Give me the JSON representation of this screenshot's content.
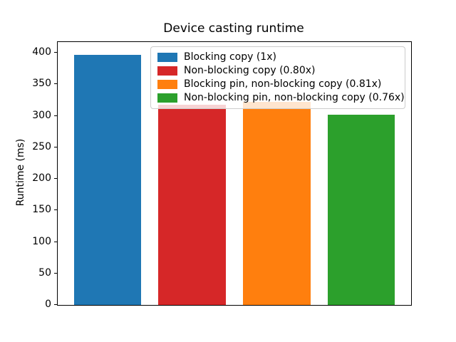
{
  "figure": {
    "background": "#ffffff",
    "axes_color": "#000000",
    "legend_border_color": "#cccccc"
  },
  "chart_data": {
    "type": "bar",
    "title": "Device casting runtime",
    "xlabel": "",
    "ylabel": "Runtime (ms)",
    "categories": [
      "Blocking copy (1x)",
      "Non-blocking copy (0.80x)",
      "Blocking pin, non-blocking copy (0.81x)",
      "Non-blocking pin, non-blocking copy (0.76x)"
    ],
    "values": [
      397,
      318,
      322,
      302
    ],
    "colors": [
      "#1f77b4",
      "#d62728",
      "#ff7f0e",
      "#2ca02c"
    ],
    "ylim": [
      0,
      417
    ],
    "yticks": [
      0,
      50,
      100,
      150,
      200,
      250,
      300,
      350,
      400
    ],
    "x_tick_labels": [],
    "grid": false,
    "bar_width_fraction": 0.8,
    "legend": {
      "position": "upper right",
      "entries": [
        "Blocking copy (1x)",
        "Non-blocking copy (0.80x)",
        "Blocking pin, non-blocking copy (0.81x)",
        "Non-blocking pin, non-blocking copy (0.76x)"
      ]
    }
  }
}
